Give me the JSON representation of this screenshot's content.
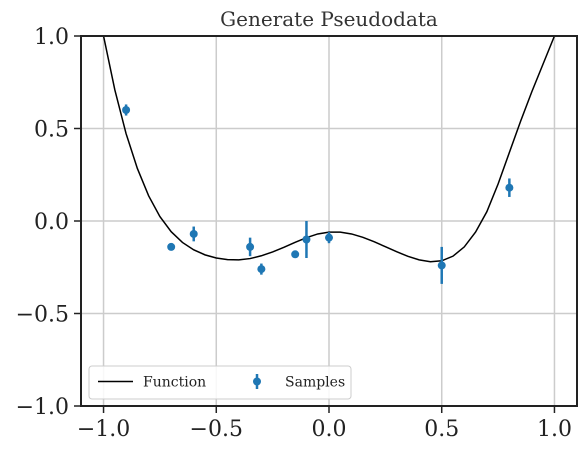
{
  "chart_data": {
    "type": "scatter",
    "title": "Generate Pseudodata",
    "xlabel": "",
    "ylabel": "",
    "xlim": [
      -1.1,
      1.1
    ],
    "ylim": [
      -1.0,
      1.0
    ],
    "x_ticks": [
      "−1.0",
      "−0.5",
      "0.0",
      "0.5",
      "1.0"
    ],
    "y_ticks": [
      "1.0",
      "0.5",
      "0.0",
      "−0.5",
      "−1.0"
    ],
    "grid": true,
    "legend_placement": "lower-left",
    "series": [
      {
        "name": "Function",
        "kind": "line",
        "color": "#000000",
        "x": [
          -1.0,
          -0.95,
          -0.9,
          -0.85,
          -0.8,
          -0.75,
          -0.7,
          -0.65,
          -0.6,
          -0.55,
          -0.5,
          -0.45,
          -0.4,
          -0.35,
          -0.3,
          -0.25,
          -0.2,
          -0.15,
          -0.1,
          -0.05,
          0.0,
          0.05,
          0.1,
          0.15,
          0.2,
          0.25,
          0.3,
          0.35,
          0.4,
          0.45,
          0.5,
          0.55,
          0.6,
          0.65,
          0.7,
          0.75,
          0.8,
          0.85,
          0.9,
          0.95,
          1.0
        ],
        "y": [
          1.0,
          0.709,
          0.472,
          0.284,
          0.136,
          0.024,
          -0.058,
          -0.116,
          -0.156,
          -0.183,
          -0.2,
          -0.209,
          -0.21,
          -0.203,
          -0.188,
          -0.167,
          -0.142,
          -0.115,
          -0.09,
          -0.07,
          -0.06,
          -0.06,
          -0.07,
          -0.088,
          -0.112,
          -0.139,
          -0.166,
          -0.191,
          -0.21,
          -0.22,
          -0.215,
          -0.19,
          -0.14,
          -0.06,
          0.05,
          0.2,
          0.37,
          0.54,
          0.7,
          0.85,
          1.0
        ]
      },
      {
        "name": "Samples",
        "kind": "errorbar",
        "color": "#1f77b4",
        "x": [
          -0.9,
          -0.7,
          -0.6,
          -0.35,
          -0.3,
          -0.15,
          -0.1,
          0.0,
          0.5,
          0.8
        ],
        "y": [
          0.6,
          -0.14,
          -0.07,
          -0.14,
          -0.26,
          -0.18,
          -0.1,
          -0.09,
          -0.24,
          0.18
        ],
        "yerr": [
          0.03,
          0.01,
          0.04,
          0.05,
          0.03,
          0.01,
          0.1,
          0.03,
          0.1,
          0.05
        ]
      }
    ]
  }
}
